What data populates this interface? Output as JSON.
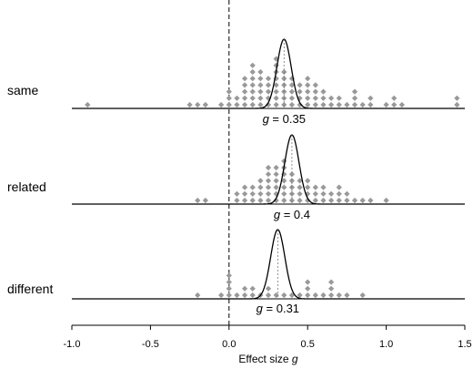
{
  "chart_data": {
    "type": "scatter",
    "title": "",
    "xlabel": "Effect size",
    "xlabel_symbol": "g",
    "ylabel": "",
    "xlim": [
      -1.0,
      1.5
    ],
    "x_ticks": [
      "-1.0",
      "-0.5",
      "0.0",
      "0.5",
      "1.0",
      "1.5"
    ],
    "reference_line_x": 0.0,
    "grid": false,
    "legend": "none",
    "point_color": "#999999",
    "series": [
      {
        "name": "same",
        "estimate": 0.35,
        "estimate_label_value": "0.35",
        "values": [
          -0.9,
          -0.25,
          -0.2,
          -0.15,
          -0.05,
          0.0,
          0.0,
          0.0,
          0.05,
          0.05,
          0.1,
          0.1,
          0.1,
          0.1,
          0.1,
          0.15,
          0.15,
          0.15,
          0.15,
          0.15,
          0.15,
          0.15,
          0.2,
          0.2,
          0.2,
          0.2,
          0.2,
          0.2,
          0.25,
          0.25,
          0.25,
          0.25,
          0.25,
          0.3,
          0.3,
          0.3,
          0.3,
          0.3,
          0.3,
          0.3,
          0.3,
          0.35,
          0.35,
          0.35,
          0.35,
          0.35,
          0.35,
          0.4,
          0.4,
          0.4,
          0.4,
          0.4,
          0.45,
          0.45,
          0.45,
          0.45,
          0.5,
          0.5,
          0.5,
          0.5,
          0.5,
          0.55,
          0.55,
          0.55,
          0.55,
          0.6,
          0.6,
          0.6,
          0.65,
          0.65,
          0.7,
          0.7,
          0.75,
          0.8,
          0.8,
          0.8,
          0.85,
          0.9,
          0.9,
          1.0,
          1.05,
          1.05,
          1.1,
          1.45,
          1.45
        ]
      },
      {
        "name": "related",
        "estimate": 0.4,
        "estimate_label_value": "0.4",
        "values": [
          -0.2,
          -0.15,
          0.05,
          0.05,
          0.1,
          0.1,
          0.1,
          0.15,
          0.15,
          0.15,
          0.2,
          0.2,
          0.2,
          0.2,
          0.25,
          0.25,
          0.25,
          0.25,
          0.25,
          0.25,
          0.3,
          0.3,
          0.3,
          0.3,
          0.3,
          0.3,
          0.35,
          0.35,
          0.35,
          0.35,
          0.35,
          0.35,
          0.35,
          0.4,
          0.4,
          0.4,
          0.4,
          0.4,
          0.45,
          0.45,
          0.45,
          0.45,
          0.5,
          0.5,
          0.5,
          0.5,
          0.55,
          0.55,
          0.55,
          0.6,
          0.6,
          0.6,
          0.65,
          0.65,
          0.7,
          0.7,
          0.7,
          0.75,
          0.75,
          0.8,
          0.85,
          0.9,
          1.0
        ]
      },
      {
        "name": "different",
        "estimate": 0.31,
        "estimate_label_value": "0.31",
        "values": [
          -0.2,
          -0.05,
          0.0,
          0.0,
          0.0,
          0.0,
          0.05,
          0.1,
          0.1,
          0.15,
          0.15,
          0.2,
          0.25,
          0.25,
          0.3,
          0.35,
          0.4,
          0.45,
          0.5,
          0.5,
          0.5,
          0.55,
          0.6,
          0.65,
          0.65,
          0.65,
          0.7,
          0.75,
          0.85
        ]
      }
    ]
  }
}
